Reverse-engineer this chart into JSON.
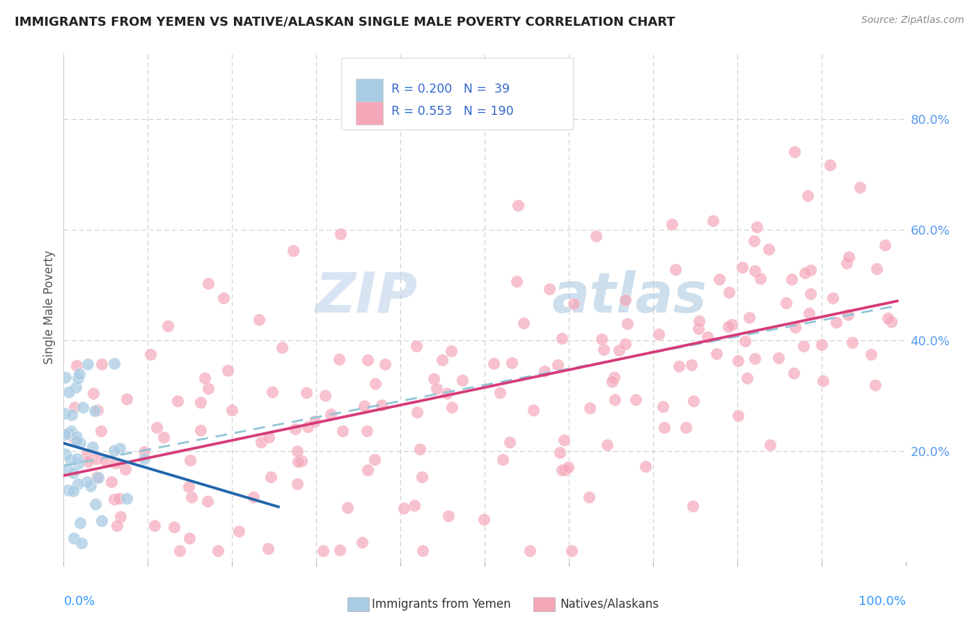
{
  "title": "IMMIGRANTS FROM YEMEN VS NATIVE/ALASKAN SINGLE MALE POVERTY CORRELATION CHART",
  "source": "Source: ZipAtlas.com",
  "ylabel": "Single Male Poverty",
  "color_blue": "#a8cce4",
  "color_pink": "#f4a7b9",
  "color_blue_line": "#2166ac",
  "color_pink_line": "#d63c78",
  "color_dashed": "#90c4d8",
  "background_color": "#ffffff",
  "watermark_color": "#c8ddf0",
  "grid_color": "#cccccc",
  "right_tick_color": "#5599ee",
  "source_color": "#888888",
  "title_color": "#222222",
  "legend_text_color": "#3366cc",
  "bottom_label_color": "#3399ff"
}
